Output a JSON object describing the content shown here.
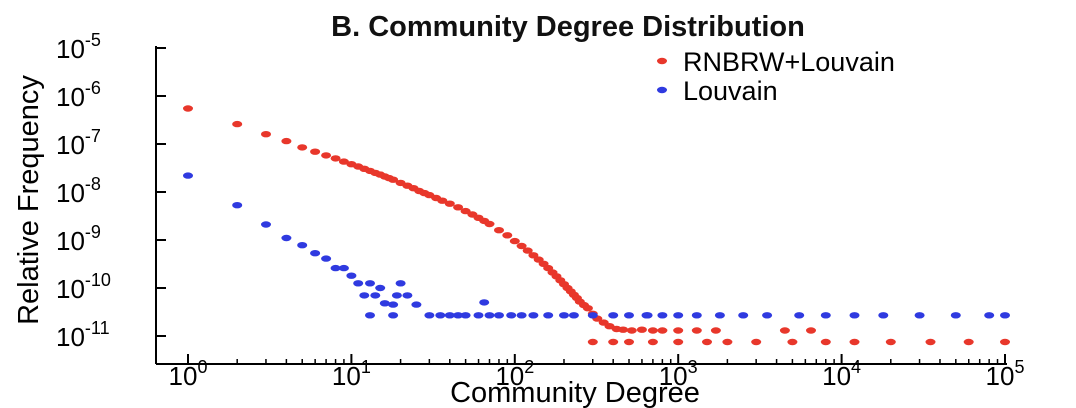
{
  "chart_data": {
    "type": "scatter",
    "title": "B. Community Degree Distribution",
    "xlabel": "Community Degree",
    "ylabel": "Relative Frequency",
    "x_scale": "log",
    "y_scale": "log",
    "xlim": [
      0.5,
      100000
    ],
    "ylim": [
      5e-12,
      1e-05
    ],
    "x_ticks": [
      {
        "base": "10",
        "exp": "0"
      },
      {
        "base": "10",
        "exp": "1"
      },
      {
        "base": "10",
        "exp": "2"
      },
      {
        "base": "10",
        "exp": "3"
      },
      {
        "base": "10",
        "exp": "4"
      },
      {
        "base": "10",
        "exp": "5"
      }
    ],
    "y_ticks": [
      {
        "base": "10",
        "exp": "-5"
      },
      {
        "base": "10",
        "exp": "-6"
      },
      {
        "base": "10",
        "exp": "-7"
      },
      {
        "base": "10",
        "exp": "-8"
      },
      {
        "base": "10",
        "exp": "-9"
      },
      {
        "base": "10",
        "exp": "-10"
      },
      {
        "base": "10",
        "exp": "-11"
      }
    ],
    "grid": false,
    "legend_position": "top-right",
    "series": [
      {
        "name": "RNBRW+Louvain",
        "color": "#e8372b",
        "points": [
          [
            1,
            5.5e-07
          ],
          [
            2,
            2.6e-07
          ],
          [
            3,
            1.6e-07
          ],
          [
            4,
            1.15e-07
          ],
          [
            5,
            8.5e-08
          ],
          [
            6,
            6.9e-08
          ],
          [
            7,
            5.8e-08
          ],
          [
            8,
            5e-08
          ],
          [
            9,
            4.3e-08
          ],
          [
            10,
            3.8e-08
          ],
          [
            11,
            3.4e-08
          ],
          [
            12,
            3.05e-08
          ],
          [
            13,
            2.75e-08
          ],
          [
            14,
            2.5e-08
          ],
          [
            15,
            2.3e-08
          ],
          [
            16,
            2.1e-08
          ],
          [
            17,
            1.95e-08
          ],
          [
            18,
            1.8e-08
          ],
          [
            20,
            1.55e-08
          ],
          [
            22,
            1.35e-08
          ],
          [
            24,
            1.2e-08
          ],
          [
            26,
            1.05e-08
          ],
          [
            28,
            9.5e-09
          ],
          [
            30,
            8.6e-09
          ],
          [
            33,
            7.5e-09
          ],
          [
            36,
            6.6e-09
          ],
          [
            40,
            5.7e-09
          ],
          [
            45,
            4.8e-09
          ],
          [
            50,
            4e-09
          ],
          [
            55,
            3.4e-09
          ],
          [
            60,
            2.9e-09
          ],
          [
            65,
            2.5e-09
          ],
          [
            70,
            2.15e-09
          ],
          [
            80,
            1.6e-09
          ],
          [
            90,
            1.25e-09
          ],
          [
            100,
            9.5e-10
          ],
          [
            110,
            7.5e-10
          ],
          [
            120,
            6e-10
          ],
          [
            130,
            4.8e-10
          ],
          [
            140,
            3.9e-10
          ],
          [
            150,
            3.2e-10
          ],
          [
            160,
            2.6e-10
          ],
          [
            170,
            2.1e-10
          ],
          [
            180,
            1.75e-10
          ],
          [
            190,
            1.45e-10
          ],
          [
            200,
            1.2e-10
          ],
          [
            210,
            1e-10
          ],
          [
            220,
            8.5e-11
          ],
          [
            230,
            7.2e-11
          ],
          [
            240,
            6.2e-11
          ],
          [
            250,
            5.2e-11
          ],
          [
            265,
            4.4e-11
          ],
          [
            280,
            3.8e-11
          ],
          [
            300,
            2.9e-11
          ],
          [
            320,
            2.3e-11
          ],
          [
            350,
            1.9e-11
          ],
          [
            380,
            1.6e-11
          ],
          [
            420,
            1.4e-11
          ],
          [
            460,
            1.35e-11
          ],
          [
            520,
            1.3e-11
          ],
          [
            600,
            1.35e-11
          ],
          [
            700,
            1.3e-11
          ],
          [
            300,
            7.5e-12
          ],
          [
            400,
            7.5e-12
          ],
          [
            500,
            7.5e-12
          ],
          [
            700,
            7.5e-12
          ],
          [
            1000,
            7.5e-12
          ],
          [
            1500,
            7.5e-12
          ],
          [
            2000,
            7.5e-12
          ],
          [
            3000,
            7.5e-12
          ],
          [
            5000,
            7.5e-12
          ],
          [
            8000,
            7.5e-12
          ],
          [
            12000,
            7.5e-12
          ],
          [
            20000,
            7.5e-12
          ],
          [
            35000,
            7.5e-12
          ],
          [
            60000,
            7.5e-12
          ],
          [
            100000,
            7.5e-12
          ],
          [
            800,
            1.3e-11
          ],
          [
            1000,
            1.3e-11
          ],
          [
            1300,
            1.3e-11
          ],
          [
            1700,
            1.3e-11
          ],
          [
            4500,
            1.3e-11
          ],
          [
            6500,
            1.3e-11
          ]
        ]
      },
      {
        "name": "Louvain",
        "color": "#2f3ae0",
        "points": [
          [
            1,
            2.2e-08
          ],
          [
            2,
            5.3e-09
          ],
          [
            3,
            2.1e-09
          ],
          [
            4,
            1.1e-09
          ],
          [
            5,
            7.8e-10
          ],
          [
            6,
            5.3e-10
          ],
          [
            7,
            4.1e-10
          ],
          [
            8,
            2.6e-10
          ],
          [
            9,
            2.6e-10
          ],
          [
            10,
            1.8e-10
          ],
          [
            11,
            1.25e-10
          ],
          [
            12,
            7e-11
          ],
          [
            13,
            1.25e-10
          ],
          [
            14,
            7e-11
          ],
          [
            15,
            1e-10
          ],
          [
            16,
            4.8e-11
          ],
          [
            18,
            4.5e-11
          ],
          [
            19,
            7e-11
          ],
          [
            20,
            1.25e-10
          ],
          [
            22,
            7e-11
          ],
          [
            25,
            4.5e-11
          ],
          [
            13,
            2.7e-11
          ],
          [
            18,
            2.7e-11
          ],
          [
            30,
            2.7e-11
          ],
          [
            35,
            2.7e-11
          ],
          [
            40,
            2.7e-11
          ],
          [
            45,
            2.7e-11
          ],
          [
            50,
            2.7e-11
          ],
          [
            60,
            2.7e-11
          ],
          [
            70,
            2.7e-11
          ],
          [
            80,
            2.7e-11
          ],
          [
            95,
            2.7e-11
          ],
          [
            110,
            2.7e-11
          ],
          [
            130,
            2.7e-11
          ],
          [
            160,
            2.7e-11
          ],
          [
            200,
            2.7e-11
          ],
          [
            230,
            2.7e-11
          ],
          [
            300,
            2.7e-11
          ],
          [
            400,
            2.7e-11
          ],
          [
            500,
            2.7e-11
          ],
          [
            650,
            2.7e-11
          ],
          [
            800,
            2.7e-11
          ],
          [
            1000,
            2.7e-11
          ],
          [
            1300,
            2.7e-11
          ],
          [
            1800,
            2.7e-11
          ],
          [
            2500,
            2.7e-11
          ],
          [
            3500,
            2.7e-11
          ],
          [
            5500,
            2.7e-11
          ],
          [
            8000,
            2.7e-11
          ],
          [
            12000,
            2.7e-11
          ],
          [
            18000,
            2.7e-11
          ],
          [
            30000,
            2.7e-11
          ],
          [
            50000,
            2.7e-11
          ],
          [
            80000,
            2.7e-11
          ],
          [
            100000,
            2.7e-11
          ],
          [
            65,
            5e-11
          ],
          [
            640,
            2.7e-11
          ]
        ]
      }
    ]
  }
}
